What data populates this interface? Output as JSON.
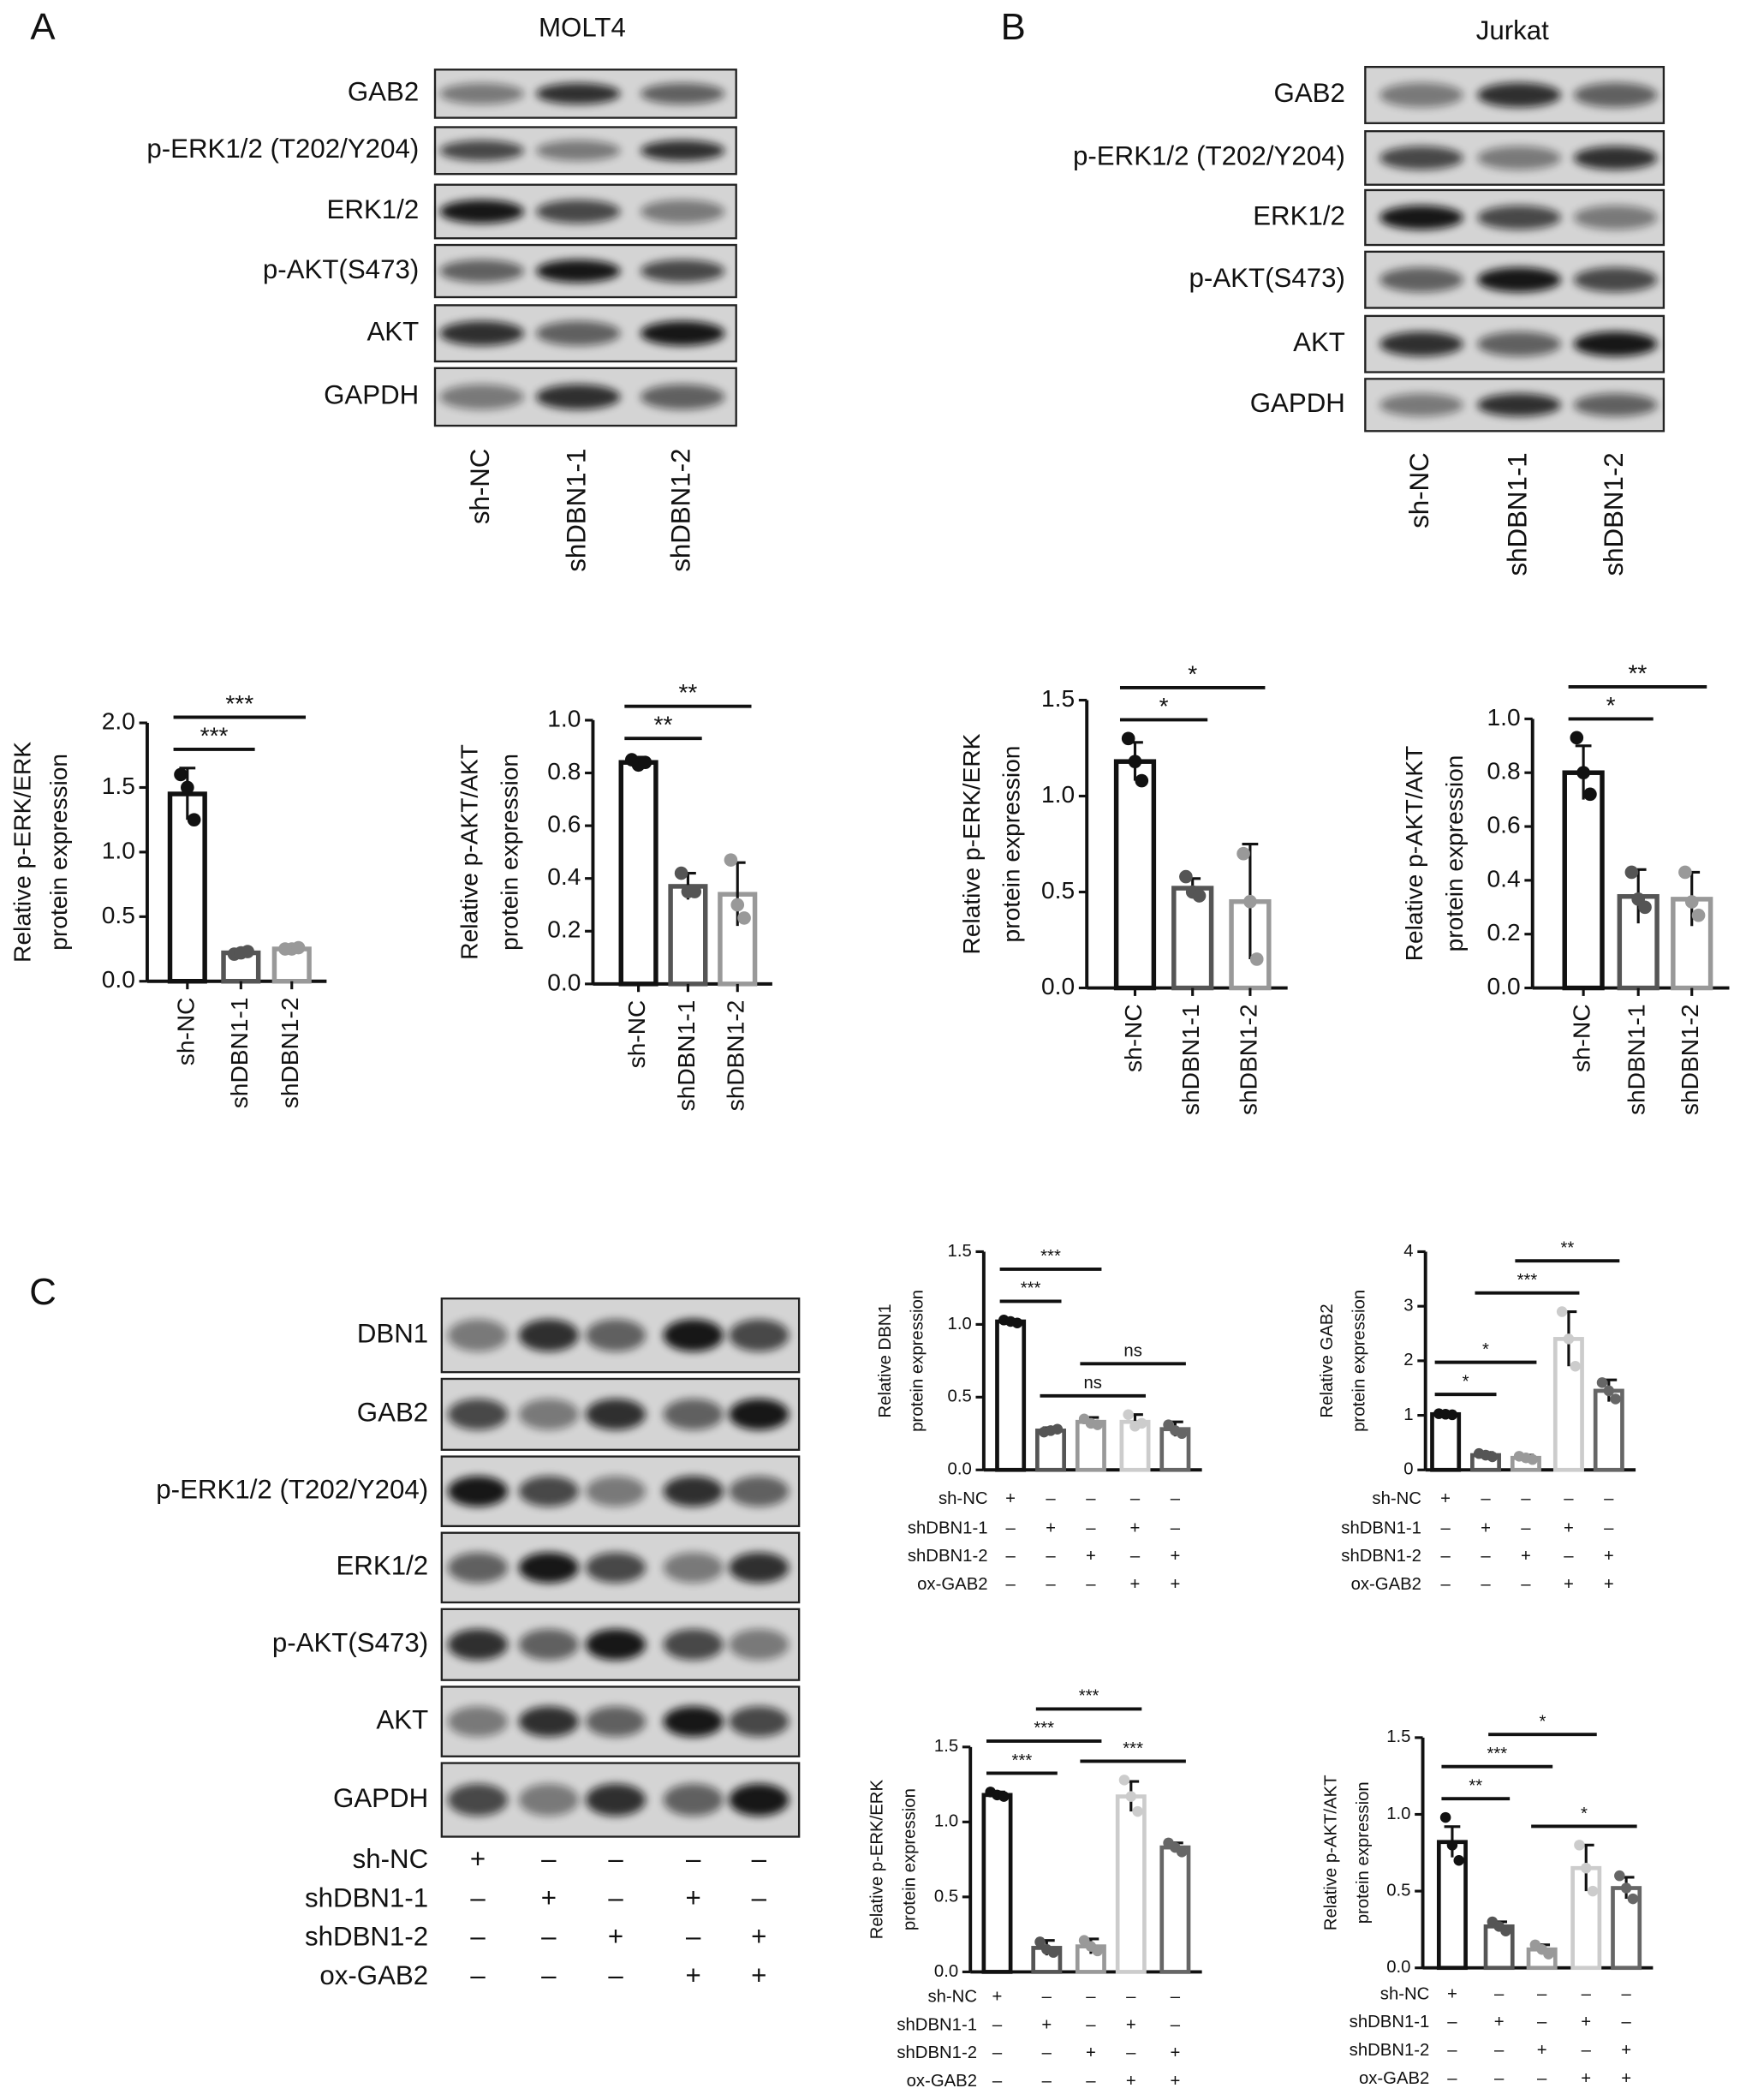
{
  "blots": [
    {
      "label": "A",
      "title": "MOLT4",
      "rows": [
        "GAB2",
        "p-ERK1/2 (T202/Y204)",
        "ERK1/2",
        "p-AKT(S473)",
        "AKT",
        "GAPDH"
      ],
      "lanes": [
        "sh-NC",
        "shDBN1-1",
        "shDBN1-2"
      ]
    },
    {
      "label": "B",
      "title": "Jurkat",
      "rows": [
        "GAB2",
        "p-ERK1/2 (T202/Y204)",
        "ERK1/2",
        "p-AKT(S473)",
        "AKT",
        "GAPDH"
      ],
      "lanes": [
        "sh-NC",
        "shDBN1-1",
        "shDBN1-2"
      ]
    },
    {
      "label": "C",
      "rows": [
        "DBN1",
        "GAB2",
        "p-ERK1/2 (T202/Y204)",
        "ERK1/2",
        "p-AKT(S473)",
        "AKT",
        "GAPDH"
      ],
      "conditions": [
        {
          "name": "sh-NC",
          "signs": [
            "+",
            "–",
            "–",
            "–",
            "–"
          ]
        },
        {
          "name": "shDBN1-1",
          "signs": [
            "–",
            "+",
            "–",
            "+",
            "–"
          ]
        },
        {
          "name": "shDBN1-2",
          "signs": [
            "–",
            "–",
            "+",
            "–",
            "+"
          ]
        },
        {
          "name": "ox-GAB2",
          "signs": [
            "–",
            "–",
            "–",
            "+",
            "+"
          ]
        }
      ]
    }
  ],
  "chart_data": [
    {
      "type": "bar",
      "y_label": [
        "Relative p-ERK/ERK",
        "protein expression"
      ],
      "categories": [
        "sh-NC",
        "shDBN1-1",
        "shDBN1-2"
      ],
      "values": [
        1.45,
        0.22,
        0.25
      ],
      "errors": [
        0.2,
        0.02,
        0.02
      ],
      "points": [
        [
          1.6,
          1.5,
          1.25
        ],
        [
          0.21,
          0.22,
          0.23
        ],
        [
          0.25,
          0.25,
          0.26
        ]
      ],
      "colors": [
        "#111111",
        "#555555",
        "#999999"
      ],
      "ylim": [
        0,
        2
      ],
      "yticks": [
        {
          "value": 0,
          "label": "0.0"
        },
        0.5,
        {
          "value": 1,
          "label": "1.0"
        },
        1.5,
        {
          "value": 2,
          "label": "2.0"
        }
      ],
      "annotations": [
        {
          "text": "***",
          "from": 0,
          "to": 1
        },
        {
          "text": "***",
          "from": 0,
          "to": 2
        }
      ]
    },
    {
      "type": "bar",
      "y_label": [
        "Relative p-AKT/AKT",
        "protein expression"
      ],
      "categories": [
        "sh-NC",
        "shDBN1-1",
        "shDBN1-2"
      ],
      "values": [
        0.84,
        0.37,
        0.34
      ],
      "errors": [
        0.02,
        0.05,
        0.12
      ],
      "points": [
        [
          0.85,
          0.83,
          0.84
        ],
        [
          0.42,
          0.35,
          0.35
        ],
        [
          0.47,
          0.3,
          0.25
        ]
      ],
      "colors": [
        "#111111",
        "#555555",
        "#999999"
      ],
      "ylim": [
        0,
        1
      ],
      "yticks": [
        {
          "value": 0,
          "label": "0.0"
        },
        0.2,
        0.4,
        0.6,
        0.8,
        {
          "value": 1,
          "label": "1.0"
        }
      ],
      "annotations": [
        {
          "text": "**",
          "from": 0,
          "to": 1
        },
        {
          "text": "**",
          "from": 0,
          "to": 2
        }
      ]
    },
    {
      "type": "bar",
      "y_label": [
        "Relative p-ERK/ERK",
        "protein expression"
      ],
      "categories": [
        "sh-NC",
        "shDBN1-1",
        "shDBN1-2"
      ],
      "values": [
        1.18,
        0.52,
        0.45
      ],
      "errors": [
        0.1,
        0.05,
        0.3
      ],
      "points": [
        [
          1.3,
          1.18,
          1.08
        ],
        [
          0.58,
          0.5,
          0.48
        ],
        [
          0.7,
          0.45,
          0.15
        ]
      ],
      "colors": [
        "#111111",
        "#555555",
        "#999999"
      ],
      "ylim": [
        0,
        1.5
      ],
      "yticks": [
        {
          "value": 0,
          "label": "0.0"
        },
        0.5,
        {
          "value": 1,
          "label": "1.0"
        },
        1.5
      ],
      "annotations": [
        {
          "text": "*",
          "from": 0,
          "to": 1
        },
        {
          "text": "*",
          "from": 0,
          "to": 2
        }
      ]
    },
    {
      "type": "bar",
      "y_label": [
        "Relative p-AKT/AKT",
        "protein expression"
      ],
      "categories": [
        "sh-NC",
        "shDBN1-1",
        "shDBN1-2"
      ],
      "values": [
        0.8,
        0.34,
        0.33
      ],
      "errors": [
        0.1,
        0.1,
        0.1
      ],
      "points": [
        [
          0.93,
          0.8,
          0.72
        ],
        [
          0.43,
          0.33,
          0.3
        ],
        [
          0.43,
          0.32,
          0.27
        ]
      ],
      "colors": [
        "#111111",
        "#555555",
        "#999999"
      ],
      "ylim": [
        0,
        1
      ],
      "yticks": [
        {
          "value": 0,
          "label": "0.0"
        },
        0.2,
        0.4,
        0.6,
        0.8,
        {
          "value": 1,
          "label": "1.0"
        }
      ],
      "annotations": [
        {
          "text": "*",
          "from": 0,
          "to": 1
        },
        {
          "text": "**",
          "from": 0,
          "to": 2
        }
      ]
    },
    {
      "type": "bar",
      "y_label": [
        "Relative DBN1",
        "protein expression"
      ],
      "values": [
        1.02,
        0.27,
        0.33,
        0.33,
        0.28
      ],
      "errors": [
        0.01,
        0.02,
        0.03,
        0.05,
        0.05
      ],
      "points": [
        [
          1.03,
          1.02,
          1.01
        ],
        [
          0.26,
          0.27,
          0.28
        ],
        [
          0.35,
          0.32,
          0.31
        ],
        [
          0.38,
          0.3,
          0.32
        ],
        [
          0.31,
          0.27,
          0.25
        ]
      ],
      "colors": [
        "#111111",
        "#555555",
        "#999999",
        "#cccccc",
        "#666666"
      ],
      "ylim": [
        0,
        1.5
      ],
      "yticks": [
        {
          "value": 0,
          "label": "0.0"
        },
        0.5,
        {
          "value": 1,
          "label": "1.0"
        },
        1.5
      ],
      "annotations": [
        {
          "text": "ns",
          "from": 1,
          "to": 3
        },
        {
          "text": "ns",
          "from": 2,
          "to": 4
        },
        {
          "text": "***",
          "from": 0,
          "to": 1
        },
        {
          "text": "***",
          "from": 0,
          "to": 2
        }
      ],
      "conditions": [
        {
          "name": "sh-NC",
          "signs": [
            "+",
            "–",
            "–",
            "–",
            "–"
          ]
        },
        {
          "name": "shDBN1-1",
          "signs": [
            "–",
            "+",
            "–",
            "+",
            "–"
          ]
        },
        {
          "name": "shDBN1-2",
          "signs": [
            "–",
            "–",
            "+",
            "–",
            "+"
          ]
        },
        {
          "name": "ox-GAB2",
          "signs": [
            "–",
            "–",
            "–",
            "+",
            "+"
          ]
        }
      ]
    },
    {
      "type": "bar",
      "y_label": [
        "Relative GAB2",
        "protein expression"
      ],
      "values": [
        1.02,
        0.27,
        0.22,
        2.4,
        1.45
      ],
      "errors": [
        0.02,
        0.05,
        0.05,
        0.5,
        0.2
      ],
      "points": [
        [
          1.03,
          1.02,
          1.01
        ],
        [
          0.3,
          0.27,
          0.24
        ],
        [
          0.25,
          0.22,
          0.19
        ],
        [
          2.9,
          2.4,
          1.9
        ],
        [
          1.6,
          1.45,
          1.3
        ]
      ],
      "colors": [
        "#111111",
        "#555555",
        "#999999",
        "#cccccc",
        "#666666"
      ],
      "ylim": [
        0,
        4
      ],
      "yticks": [
        0,
        1,
        2,
        3,
        4
      ],
      "annotations": [
        {
          "text": "*",
          "from": 0,
          "to": 1
        },
        {
          "text": "*",
          "from": 0,
          "to": 2
        },
        {
          "text": "***",
          "from": 1,
          "to": 3
        },
        {
          "text": "**",
          "from": 2,
          "to": 4
        }
      ],
      "conditions": [
        {
          "name": "sh-NC",
          "signs": [
            "+",
            "–",
            "–",
            "–",
            "–"
          ]
        },
        {
          "name": "shDBN1-1",
          "signs": [
            "–",
            "+",
            "–",
            "+",
            "–"
          ]
        },
        {
          "name": "shDBN1-2",
          "signs": [
            "–",
            "–",
            "+",
            "–",
            "+"
          ]
        },
        {
          "name": "ox-GAB2",
          "signs": [
            "–",
            "–",
            "–",
            "+",
            "+"
          ]
        }
      ]
    },
    {
      "type": "bar",
      "y_label": [
        "Relative p-ERK/ERK",
        "protein expression"
      ],
      "values": [
        1.18,
        0.16,
        0.17,
        1.17,
        0.83
      ],
      "errors": [
        0.02,
        0.05,
        0.05,
        0.1,
        0.03
      ],
      "points": [
        [
          1.2,
          1.18,
          1.17
        ],
        [
          0.2,
          0.15,
          0.13
        ],
        [
          0.21,
          0.17,
          0.14
        ],
        [
          1.28,
          1.17,
          1.07
        ],
        [
          0.86,
          0.83,
          0.8
        ]
      ],
      "colors": [
        "#111111",
        "#555555",
        "#999999",
        "#cccccc",
        "#666666"
      ],
      "ylim": [
        0,
        1.5
      ],
      "yticks": [
        {
          "value": 0,
          "label": "0.0"
        },
        0.5,
        {
          "value": 1,
          "label": "1.0"
        },
        1.5
      ],
      "annotations": [
        {
          "text": "***",
          "from": 0,
          "to": 1
        },
        {
          "text": "***",
          "from": 2,
          "to": 4
        },
        {
          "text": "***",
          "from": 0,
          "to": 2
        },
        {
          "text": "***",
          "from": 1,
          "to": 3
        }
      ],
      "conditions": [
        {
          "name": "sh-NC",
          "signs": [
            "+",
            "–",
            "–",
            "–",
            "–"
          ]
        },
        {
          "name": "shDBN1-1",
          "signs": [
            "–",
            "+",
            "–",
            "+",
            "–"
          ]
        },
        {
          "name": "shDBN1-2",
          "signs": [
            "–",
            "–",
            "+",
            "–",
            "+"
          ]
        },
        {
          "name": "ox-GAB2",
          "signs": [
            "–",
            "–",
            "–",
            "+",
            "+"
          ]
        }
      ]
    },
    {
      "type": "bar",
      "y_label": [
        "Relative p-AKT/AKT",
        "protein expression"
      ],
      "values": [
        0.82,
        0.27,
        0.12,
        0.65,
        0.52
      ],
      "errors": [
        0.1,
        0.03,
        0.03,
        0.15,
        0.07
      ],
      "points": [
        [
          0.98,
          0.8,
          0.7
        ],
        [
          0.3,
          0.27,
          0.24
        ],
        [
          0.15,
          0.12,
          0.09
        ],
        [
          0.8,
          0.65,
          0.5
        ],
        [
          0.6,
          0.52,
          0.45
        ]
      ],
      "colors": [
        "#111111",
        "#555555",
        "#999999",
        "#cccccc",
        "#666666"
      ],
      "ylim": [
        0,
        1.5
      ],
      "yticks": [
        {
          "value": 0,
          "label": "0.0"
        },
        0.5,
        {
          "value": 1,
          "label": "1.0"
        },
        1.5
      ],
      "annotations": [
        {
          "text": "**",
          "from": 0,
          "to": 1
        },
        {
          "text": "*",
          "from": 2,
          "to": 4
        },
        {
          "text": "***",
          "from": 0,
          "to": 2
        },
        {
          "text": "*",
          "from": 1,
          "to": 3
        }
      ],
      "conditions": [
        {
          "name": "sh-NC",
          "signs": [
            "+",
            "–",
            "–",
            "–",
            "–"
          ]
        },
        {
          "name": "shDBN1-1",
          "signs": [
            "–",
            "+",
            "–",
            "+",
            "–"
          ]
        },
        {
          "name": "shDBN1-2",
          "signs": [
            "–",
            "–",
            "+",
            "–",
            "+"
          ]
        },
        {
          "name": "ox-GAB2",
          "signs": [
            "–",
            "–",
            "–",
            "+",
            "+"
          ]
        }
      ]
    }
  ]
}
